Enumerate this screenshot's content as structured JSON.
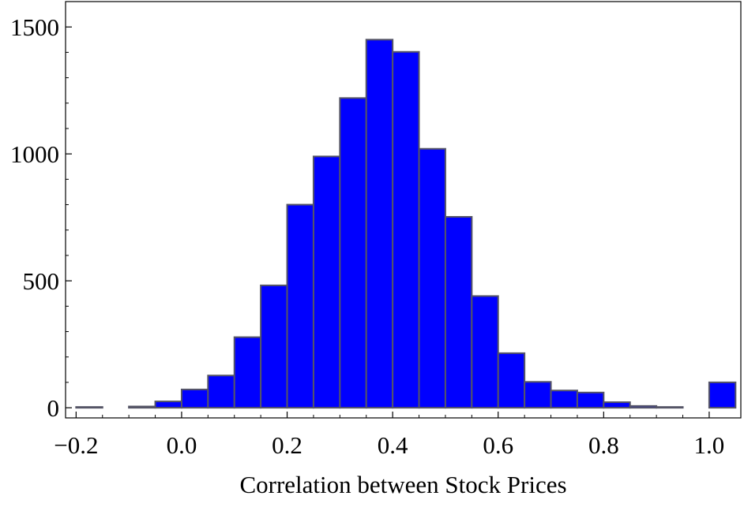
{
  "chart_data": {
    "type": "bar",
    "xlabel": "Correlation between Stock Prices",
    "ylabel": "",
    "xlim": [
      -0.22,
      1.06
    ],
    "ylim": [
      -40,
      1600
    ],
    "x_ticks": [
      {
        "value": -0.2,
        "label": "−0.2"
      },
      {
        "value": 0.0,
        "label": "0.0"
      },
      {
        "value": 0.2,
        "label": "0.2"
      },
      {
        "value": 0.4,
        "label": "0.4"
      },
      {
        "value": 0.6,
        "label": "0.6"
      },
      {
        "value": 0.8,
        "label": "0.8"
      },
      {
        "value": 1.0,
        "label": "1.0"
      }
    ],
    "y_ticks": [
      {
        "value": 0,
        "label": "0"
      },
      {
        "value": 500,
        "label": "500"
      },
      {
        "value": 1000,
        "label": "1000"
      },
      {
        "value": 1500,
        "label": "1500"
      }
    ],
    "bin_width": 0.05,
    "bins": [
      {
        "start": -0.2,
        "count": 3
      },
      {
        "start": -0.1,
        "count": 5
      },
      {
        "start": -0.05,
        "count": 25
      },
      {
        "start": 0.0,
        "count": 72
      },
      {
        "start": 0.05,
        "count": 127
      },
      {
        "start": 0.1,
        "count": 278
      },
      {
        "start": 0.15,
        "count": 482
      },
      {
        "start": 0.2,
        "count": 800
      },
      {
        "start": 0.25,
        "count": 990
      },
      {
        "start": 0.3,
        "count": 1220
      },
      {
        "start": 0.35,
        "count": 1450
      },
      {
        "start": 0.4,
        "count": 1402
      },
      {
        "start": 0.45,
        "count": 1020
      },
      {
        "start": 0.5,
        "count": 752
      },
      {
        "start": 0.55,
        "count": 440
      },
      {
        "start": 0.6,
        "count": 215
      },
      {
        "start": 0.65,
        "count": 102
      },
      {
        "start": 0.7,
        "count": 68
      },
      {
        "start": 0.75,
        "count": 60
      },
      {
        "start": 0.8,
        "count": 22
      },
      {
        "start": 0.85,
        "count": 7
      },
      {
        "start": 0.9,
        "count": 3
      },
      {
        "start": 1.0,
        "count": 100
      }
    ],
    "bar_color": "#0000ff",
    "bar_edge_color": "#555566",
    "grid": false,
    "legend": "none"
  }
}
